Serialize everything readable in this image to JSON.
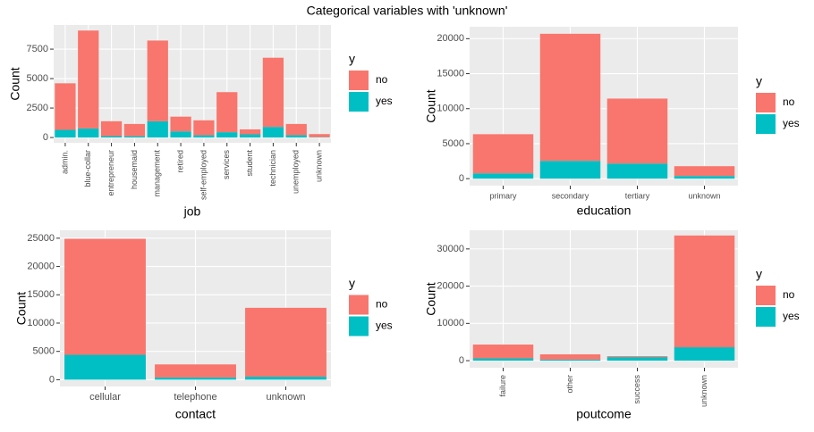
{
  "title": "Categorical variables with 'unknown'",
  "chart_data": [
    {
      "type": "bar",
      "stacked": true,
      "x_label": "job",
      "y_label": "Count",
      "legend_title": "y",
      "categories": [
        "admin.",
        "blue-collar",
        "entrepreneur",
        "housemaid",
        "management",
        "retired",
        "self-employed",
        "services",
        "student",
        "technician",
        "unemployed",
        "unknown"
      ],
      "series": [
        {
          "name": "no",
          "color": "#F8766D",
          "values": [
            3950,
            8310,
            1260,
            1040,
            6850,
            1250,
            1270,
            3400,
            420,
            5870,
            950,
            260
          ]
        },
        {
          "name": "yes",
          "color": "#00BFC4",
          "values": [
            650,
            770,
            120,
            110,
            1380,
            520,
            190,
            450,
            270,
            900,
            200,
            30
          ]
        }
      ],
      "ylim": [
        -450,
        9550
      ],
      "yticks": [
        0,
        2500,
        5000,
        7500
      ],
      "grid": true
    },
    {
      "type": "bar",
      "stacked": true,
      "x_label": "education",
      "y_label": "Count",
      "legend_title": "y",
      "categories": [
        "primary",
        "secondary",
        "tertiary",
        "unknown"
      ],
      "series": [
        {
          "name": "no",
          "color": "#F8766D",
          "values": [
            5590,
            18160,
            9280,
            1400
          ]
        },
        {
          "name": "yes",
          "color": "#00BFC4",
          "values": [
            760,
            2540,
            2160,
            380
          ]
        }
      ],
      "ylim": [
        -1000,
        21700
      ],
      "yticks": [
        0,
        5000,
        10000,
        15000,
        20000
      ],
      "grid": true
    },
    {
      "type": "bar",
      "stacked": true,
      "x_label": "contact",
      "y_label": "Count",
      "legend_title": "y",
      "categories": [
        "cellular",
        "telephone",
        "unknown"
      ],
      "series": [
        {
          "name": "no",
          "color": "#F8766D",
          "values": [
            20500,
            2310,
            12170
          ]
        },
        {
          "name": "yes",
          "color": "#00BFC4",
          "values": [
            4400,
            390,
            530
          ]
        }
      ],
      "ylim": [
        -1200,
        26400
      ],
      "yticks": [
        0,
        5000,
        10000,
        15000,
        20000,
        25000
      ],
      "grid": true
    },
    {
      "type": "bar",
      "stacked": true,
      "x_label": "poutcome",
      "y_label": "Count",
      "legend_title": "y",
      "categories": [
        "failure",
        "other",
        "success",
        "unknown"
      ],
      "series": [
        {
          "name": "no",
          "color": "#F8766D",
          "values": [
            3700,
            1400,
            250,
            30000
          ]
        },
        {
          "name": "yes",
          "color": "#00BFC4",
          "values": [
            620,
            300,
            950,
            3600
          ]
        }
      ],
      "ylim": [
        -1900,
        35000
      ],
      "yticks": [
        0,
        10000,
        20000,
        30000
      ],
      "grid": true
    }
  ]
}
